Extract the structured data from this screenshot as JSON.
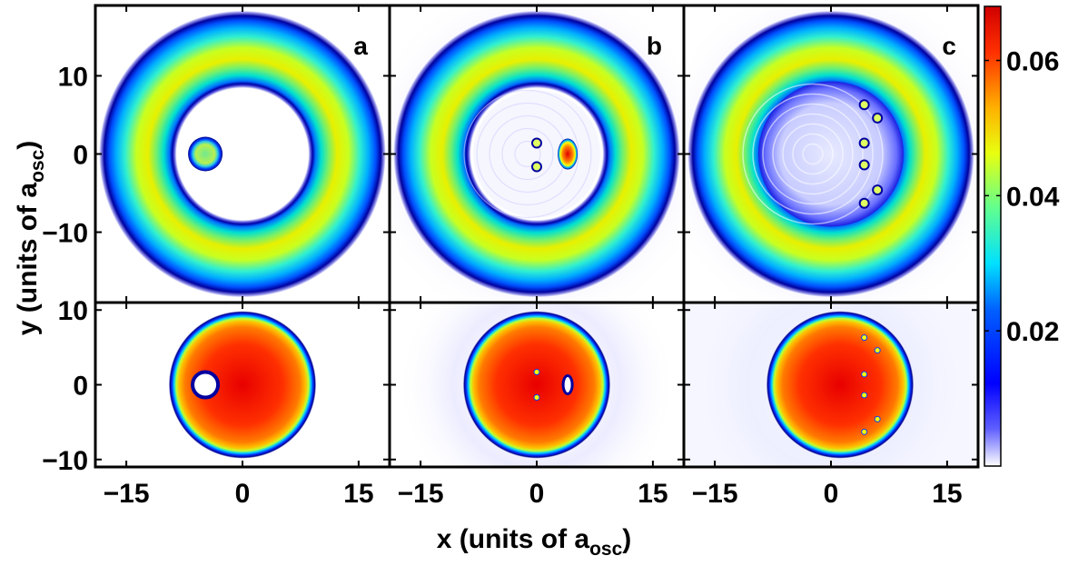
{
  "chart_data": {
    "type": "heatmap",
    "panels": [
      {
        "label": "a",
        "row": 0,
        "col": 0,
        "state": "top-bubble-with-blob"
      },
      {
        "label": "b",
        "row": 0,
        "col": 1,
        "state": "top-bubble-with-vortices"
      },
      {
        "label": "c",
        "row": 0,
        "col": 2,
        "state": "top-bubble-turbulent"
      },
      {
        "label": "",
        "row": 1,
        "col": 0,
        "state": "bottom-disc-with-hole"
      },
      {
        "label": "",
        "row": 1,
        "col": 1,
        "state": "bottom-disc-with-vortices"
      },
      {
        "label": "",
        "row": 1,
        "col": 2,
        "state": "bottom-disc-turbulent"
      }
    ],
    "xlabel": {
      "main": "x (units of a",
      "sub": "osc",
      "end": ")"
    },
    "ylabel": {
      "main": "y (units of a",
      "sub": "osc",
      "end": ")"
    },
    "x_ticks": [
      "−15",
      "0",
      "15"
    ],
    "x_tick_values": [
      -15,
      0,
      15
    ],
    "xlim": [
      -19,
      19
    ],
    "top_y_ticks": [
      "10",
      "0",
      "−10"
    ],
    "top_y_tick_values": [
      10,
      0,
      -10
    ],
    "top_ylim": [
      -19,
      19
    ],
    "bottom_y_ticks": [
      "10",
      "0",
      "−10"
    ],
    "bottom_y_tick_values": [
      10,
      0,
      -10
    ],
    "bottom_ylim": [
      -11,
      11
    ],
    "colorbar": {
      "range": [
        0,
        0.068
      ],
      "ticks": [
        "0.02",
        "0.04",
        "0.06"
      ],
      "tick_values": [
        0.02,
        0.04,
        0.06
      ],
      "colormap": "jet-white-low"
    },
    "top_outer_radius": 18.5,
    "top_inner_radius": 9,
    "bottom_radius": 9.5,
    "blob_center": [
      -4.8,
      0
    ],
    "grid": false
  }
}
